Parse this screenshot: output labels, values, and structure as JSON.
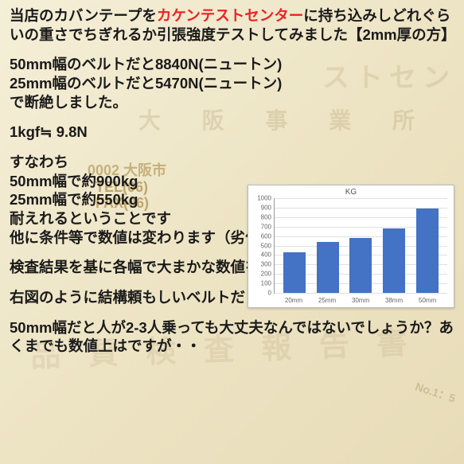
{
  "text": {
    "p1a": "当店のカバンテープを",
    "p1b": "カケンテストセンター",
    "p1c": "に持ち込みしどれぐらいの重さでちぎれるか引張強度テストしてみました【2mm厚の方】",
    "p2": "50mm幅のベルトだと8840N(ニュートン)\n25mm幅のベルトだと5470N(ニュートン)\nで断絶しました。",
    "p3": "1kgf≒ 9.8N",
    "p4": "すなわち\n50mm幅で約900kg\n25mm幅で約550kg\n耐えれるということです\n他に条件等で数値は変わります（劣化・環境・色等）",
    "p5": "検査結果を基に各幅で大まかな数値を出してみました",
    "p6": "右図のように結構頼もしいベルトだということがわかりました。",
    "p7": "50mm幅だと人が2-3人乗っても大丈夫なんではないでしょうか？あくまでも数値上はですが・・"
  },
  "watermarks": {
    "w1": "ストセン",
    "w2": "大 阪 事 業 所",
    "w3": "0002 大阪市",
    "w4": "TEL(06)",
    "w5": "FAX(06)",
    "w6": "品 質 検 査 報 告 書",
    "w7": "No.1：5"
  },
  "chart": {
    "title": "KG",
    "categories": [
      "20mm",
      "25mm",
      "30mm",
      "38mm",
      "50mm"
    ],
    "values": [
      430,
      540,
      580,
      680,
      890
    ],
    "ylim": [
      0,
      1000
    ],
    "ytick_step": 100,
    "bar_color": "#4472c4",
    "grid_color": "#e0e0e0",
    "background": "#ffffff"
  }
}
